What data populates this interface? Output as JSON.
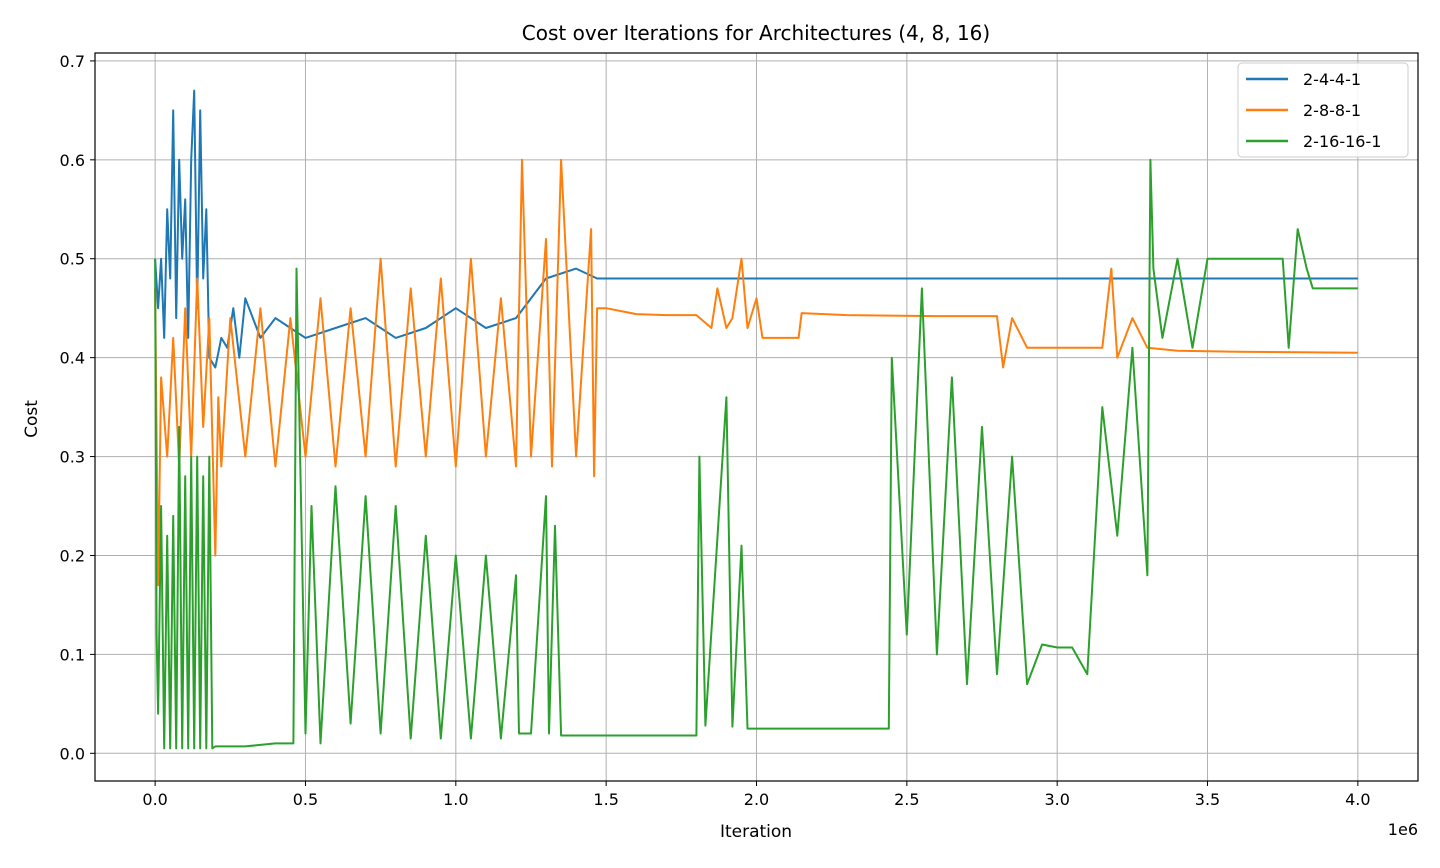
{
  "chart_data": {
    "type": "line",
    "title": "Cost over Iterations for Architectures (4, 8, 16)",
    "xlabel": "Iteration",
    "ylabel": "Cost",
    "x_offset_label": "1e6",
    "xlim": [
      -0.2,
      4.2
    ],
    "ylim": [
      -0.028,
      0.708
    ],
    "x_ticks": [
      0.0,
      0.5,
      1.0,
      1.5,
      2.0,
      2.5,
      3.0,
      3.5,
      4.0
    ],
    "x_tick_labels": [
      "0.0",
      "0.5",
      "1.0",
      "1.5",
      "2.0",
      "2.5",
      "3.0",
      "3.5",
      "4.0"
    ],
    "y_ticks": [
      0.0,
      0.1,
      0.2,
      0.3,
      0.4,
      0.5,
      0.6,
      0.7
    ],
    "y_tick_labels": [
      "0.0",
      "0.1",
      "0.2",
      "0.3",
      "0.4",
      "0.5",
      "0.6",
      "0.7"
    ],
    "grid": true,
    "legend_position": "top-right",
    "series": [
      {
        "name": "2-4-4-1",
        "color": "#1f77b4",
        "x": [
          0.0,
          0.01,
          0.02,
          0.03,
          0.04,
          0.05,
          0.06,
          0.07,
          0.08,
          0.09,
          0.1,
          0.11,
          0.12,
          0.13,
          0.14,
          0.15,
          0.16,
          0.17,
          0.18,
          0.2,
          0.22,
          0.24,
          0.26,
          0.28,
          0.3,
          0.35,
          0.4,
          0.45,
          0.5,
          0.6,
          0.7,
          0.8,
          0.9,
          1.0,
          1.1,
          1.2,
          1.3,
          1.4,
          1.47,
          1.5,
          2.0,
          2.5,
          3.0,
          3.5,
          4.0
        ],
        "y": [
          0.5,
          0.45,
          0.5,
          0.42,
          0.55,
          0.48,
          0.65,
          0.44,
          0.6,
          0.5,
          0.56,
          0.42,
          0.6,
          0.67,
          0.45,
          0.65,
          0.48,
          0.55,
          0.4,
          0.39,
          0.42,
          0.41,
          0.45,
          0.4,
          0.46,
          0.42,
          0.44,
          0.43,
          0.42,
          0.43,
          0.44,
          0.42,
          0.43,
          0.45,
          0.43,
          0.44,
          0.48,
          0.49,
          0.48,
          0.48,
          0.48,
          0.48,
          0.48,
          0.48,
          0.48
        ]
      },
      {
        "name": "2-8-8-1",
        "color": "#ff7f0e",
        "x": [
          0.0,
          0.01,
          0.02,
          0.04,
          0.06,
          0.08,
          0.1,
          0.12,
          0.14,
          0.16,
          0.18,
          0.2,
          0.21,
          0.22,
          0.25,
          0.3,
          0.35,
          0.4,
          0.45,
          0.5,
          0.55,
          0.6,
          0.65,
          0.7,
          0.75,
          0.8,
          0.85,
          0.9,
          0.95,
          1.0,
          1.05,
          1.1,
          1.15,
          1.2,
          1.22,
          1.25,
          1.3,
          1.32,
          1.35,
          1.4,
          1.45,
          1.46,
          1.47,
          1.5,
          1.6,
          1.7,
          1.8,
          1.85,
          1.87,
          1.9,
          1.92,
          1.95,
          1.97,
          2.0,
          2.02,
          2.05,
          2.14,
          2.15,
          2.3,
          2.6,
          2.8,
          2.82,
          2.85,
          2.9,
          3.0,
          3.15,
          3.18,
          3.2,
          3.25,
          3.3,
          3.4,
          3.6,
          4.0
        ],
        "y": [
          0.47,
          0.17,
          0.38,
          0.3,
          0.42,
          0.29,
          0.45,
          0.3,
          0.48,
          0.33,
          0.44,
          0.2,
          0.36,
          0.29,
          0.44,
          0.3,
          0.45,
          0.29,
          0.44,
          0.3,
          0.46,
          0.29,
          0.45,
          0.3,
          0.5,
          0.29,
          0.47,
          0.3,
          0.48,
          0.29,
          0.5,
          0.3,
          0.46,
          0.29,
          0.6,
          0.3,
          0.52,
          0.29,
          0.6,
          0.3,
          0.53,
          0.28,
          0.45,
          0.45,
          0.444,
          0.443,
          0.443,
          0.43,
          0.47,
          0.43,
          0.44,
          0.5,
          0.43,
          0.46,
          0.42,
          0.42,
          0.42,
          0.445,
          0.443,
          0.442,
          0.442,
          0.39,
          0.44,
          0.41,
          0.41,
          0.41,
          0.49,
          0.4,
          0.44,
          0.41,
          0.407,
          0.406,
          0.405
        ]
      },
      {
        "name": "2-16-16-1",
        "color": "#2ca02c",
        "x": [
          0.0,
          0.005,
          0.01,
          0.02,
          0.03,
          0.04,
          0.05,
          0.06,
          0.07,
          0.08,
          0.09,
          0.1,
          0.11,
          0.12,
          0.13,
          0.14,
          0.15,
          0.16,
          0.17,
          0.18,
          0.19,
          0.2,
          0.21,
          0.22,
          0.3,
          0.4,
          0.46,
          0.47,
          0.5,
          0.52,
          0.55,
          0.6,
          0.65,
          0.7,
          0.75,
          0.8,
          0.85,
          0.9,
          0.95,
          1.0,
          1.05,
          1.1,
          1.15,
          1.2,
          1.21,
          1.25,
          1.3,
          1.31,
          1.33,
          1.35,
          1.5,
          1.8,
          1.81,
          1.83,
          1.9,
          1.92,
          1.95,
          1.97,
          2.0,
          2.2,
          2.44,
          2.45,
          2.5,
          2.55,
          2.6,
          2.65,
          2.7,
          2.75,
          2.8,
          2.85,
          2.9,
          2.95,
          3.0,
          3.05,
          3.1,
          3.15,
          3.2,
          3.25,
          3.3,
          3.31,
          3.32,
          3.35,
          3.4,
          3.45,
          3.5,
          3.6,
          3.75,
          3.77,
          3.8,
          3.83,
          3.85,
          3.9,
          4.0
        ],
        "y": [
          0.5,
          0.12,
          0.04,
          0.25,
          0.005,
          0.22,
          0.005,
          0.24,
          0.005,
          0.33,
          0.005,
          0.28,
          0.005,
          0.3,
          0.005,
          0.3,
          0.005,
          0.28,
          0.005,
          0.3,
          0.005,
          0.007,
          0.007,
          0.007,
          0.007,
          0.01,
          0.01,
          0.49,
          0.02,
          0.25,
          0.01,
          0.27,
          0.03,
          0.26,
          0.02,
          0.25,
          0.015,
          0.22,
          0.015,
          0.2,
          0.015,
          0.2,
          0.015,
          0.18,
          0.02,
          0.02,
          0.26,
          0.02,
          0.23,
          0.018,
          0.018,
          0.018,
          0.3,
          0.028,
          0.36,
          0.027,
          0.21,
          0.025,
          0.025,
          0.025,
          0.025,
          0.4,
          0.12,
          0.47,
          0.1,
          0.38,
          0.07,
          0.33,
          0.08,
          0.3,
          0.07,
          0.11,
          0.107,
          0.107,
          0.08,
          0.35,
          0.22,
          0.41,
          0.18,
          0.6,
          0.49,
          0.42,
          0.5,
          0.41,
          0.5,
          0.5,
          0.5,
          0.41,
          0.53,
          0.49,
          0.47,
          0.47,
          0.47
        ]
      }
    ]
  }
}
